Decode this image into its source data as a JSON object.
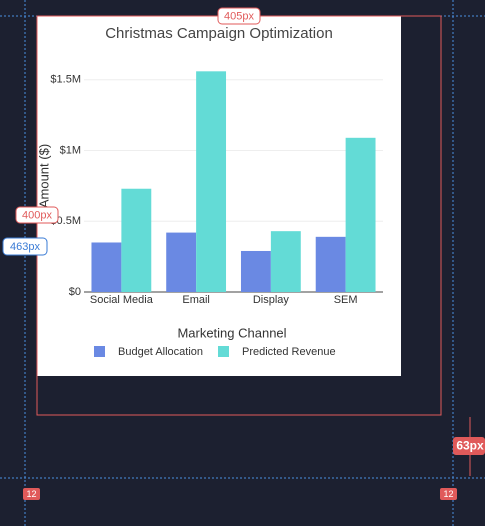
{
  "chart_data": {
    "type": "bar",
    "title": "Christmas Campaign Optimization",
    "x_label": "Marketing Channel",
    "y_label": "Amount ($)",
    "categories": [
      "Social Media",
      "Email",
      "Display",
      "SEM"
    ],
    "series": [
      {
        "name": "Budget Allocation",
        "color": "#6a89e3",
        "values": [
          350000,
          420000,
          290000,
          390000
        ]
      },
      {
        "name": "Predicted Revenue",
        "color": "#63dbd6",
        "values": [
          730000,
          1560000,
          430000,
          1090000
        ]
      }
    ],
    "ylim": [
      0,
      1640000
    ],
    "yticks": [
      {
        "value": 0,
        "label": "$0"
      },
      {
        "value": 500000,
        "label": "$0.5M"
      },
      {
        "value": 1000000,
        "label": "$1M"
      },
      {
        "value": 1500000,
        "label": "$1.5M"
      }
    ],
    "grid": true,
    "legend": "bottom"
  },
  "overlay": {
    "width_label": "405px",
    "height_label": "400px",
    "outer_height_label": "463px",
    "gap_label": "63px",
    "left_spacing": "12",
    "right_spacing": "12"
  }
}
